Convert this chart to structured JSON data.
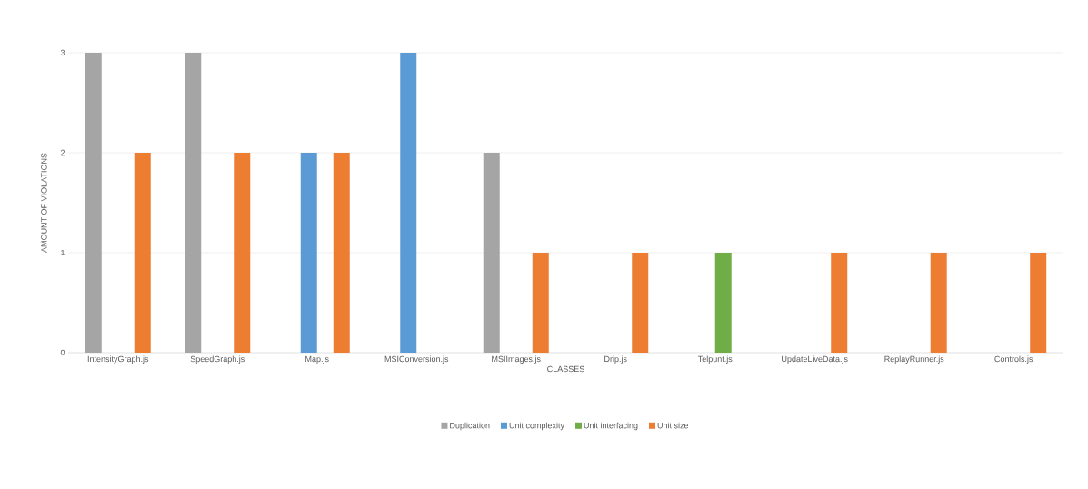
{
  "chart_data": {
    "type": "bar",
    "xlabel": "CLASSES",
    "ylabel": "AMOUNT OF VIOLATIONS",
    "categories": [
      "IntensityGraph.js",
      "SpeedGraph.js",
      "Map.js",
      "MSIConversion.js",
      "MSIImages.js",
      "Drip.js",
      "Telpunt.js",
      "UpdateLiveData.js",
      "ReplayRunner.js",
      "Controls.js"
    ],
    "series": [
      {
        "name": "Duplication",
        "color": "#a5a5a5",
        "values": [
          3,
          3,
          0,
          0,
          2,
          0,
          0,
          0,
          0,
          0
        ]
      },
      {
        "name": "Unit complexity",
        "color": "#5b9bd5",
        "values": [
          0,
          0,
          2,
          3,
          0,
          0,
          0,
          0,
          0,
          0
        ]
      },
      {
        "name": "Unit interfacing",
        "color": "#70ad47",
        "values": [
          0,
          0,
          0,
          0,
          0,
          0,
          1,
          0,
          0,
          0
        ]
      },
      {
        "name": "Unit size",
        "color": "#ed7d31",
        "values": [
          2,
          2,
          2,
          0,
          1,
          1,
          0,
          1,
          1,
          1
        ]
      }
    ],
    "ylim": [
      0,
      3
    ],
    "yticks": [
      0,
      1,
      2,
      3
    ],
    "grid": "y",
    "legend": "bottom"
  }
}
